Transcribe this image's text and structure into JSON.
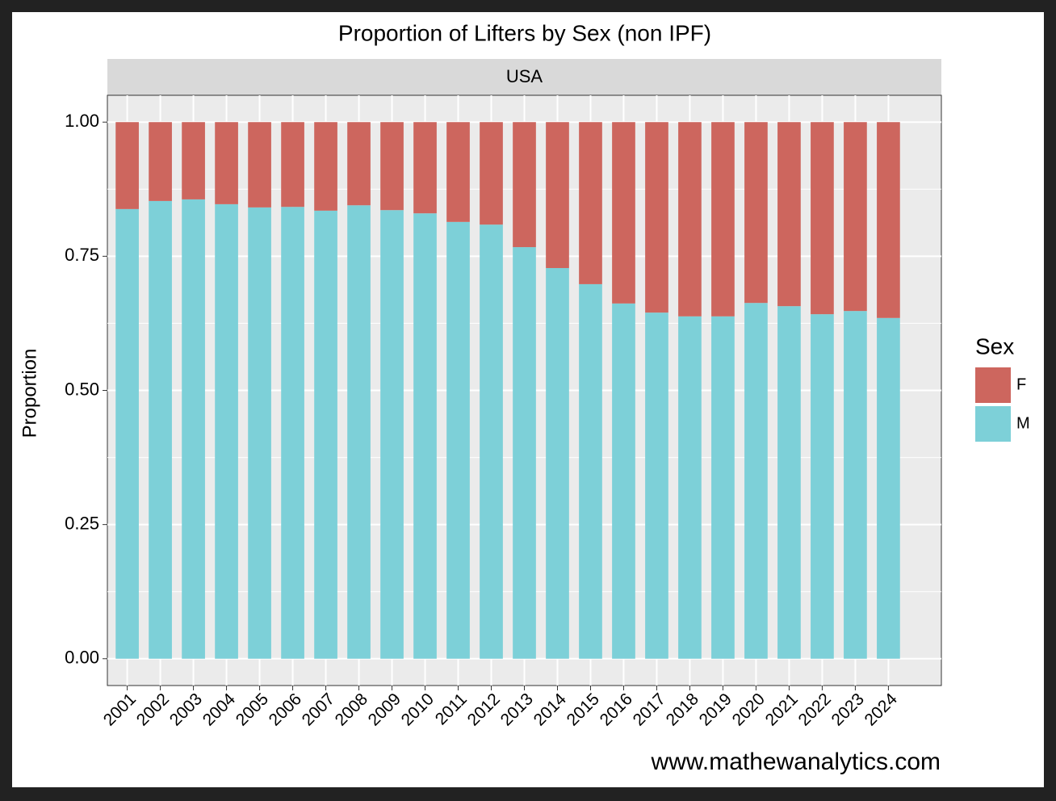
{
  "chart_data": {
    "type": "stacked_bar",
    "title": "Proportion of Lifters by Sex (non IPF)",
    "facet": "USA",
    "y_label": "Proportion",
    "caption": "www.mathewanalytics.com",
    "legend_title": "Sex",
    "legend_position": "right",
    "grid": true,
    "categories": [
      "2001",
      "2002",
      "2003",
      "2004",
      "2005",
      "2006",
      "2007",
      "2008",
      "2009",
      "2010",
      "2011",
      "2012",
      "2013",
      "2014",
      "2015",
      "2016",
      "2017",
      "2018",
      "2019",
      "2020",
      "2021",
      "2022",
      "2023",
      "2024"
    ],
    "series": [
      {
        "name": "F",
        "color": "#cd665e",
        "values": [
          0.162,
          0.147,
          0.144,
          0.153,
          0.159,
          0.158,
          0.165,
          0.155,
          0.164,
          0.17,
          0.186,
          0.191,
          0.233,
          0.272,
          0.302,
          0.338,
          0.355,
          0.362,
          0.362,
          0.337,
          0.343,
          0.358,
          0.352,
          0.365
        ]
      },
      {
        "name": "M",
        "color": "#7dd0d8",
        "values": [
          0.838,
          0.853,
          0.856,
          0.847,
          0.841,
          0.842,
          0.835,
          0.845,
          0.836,
          0.83,
          0.814,
          0.809,
          0.767,
          0.728,
          0.698,
          0.662,
          0.645,
          0.638,
          0.638,
          0.663,
          0.657,
          0.642,
          0.648,
          0.635
        ]
      }
    ],
    "ylim": [
      -0.05,
      1.05
    ],
    "yticks": [
      {
        "value": 0,
        "label": "0.00"
      },
      {
        "value": 0.25,
        "label": "0.25"
      },
      {
        "value": 0.5,
        "label": "0.50"
      },
      {
        "value": 0.75,
        "label": "0.75"
      },
      {
        "value": 1,
        "label": "1.00"
      }
    ]
  }
}
